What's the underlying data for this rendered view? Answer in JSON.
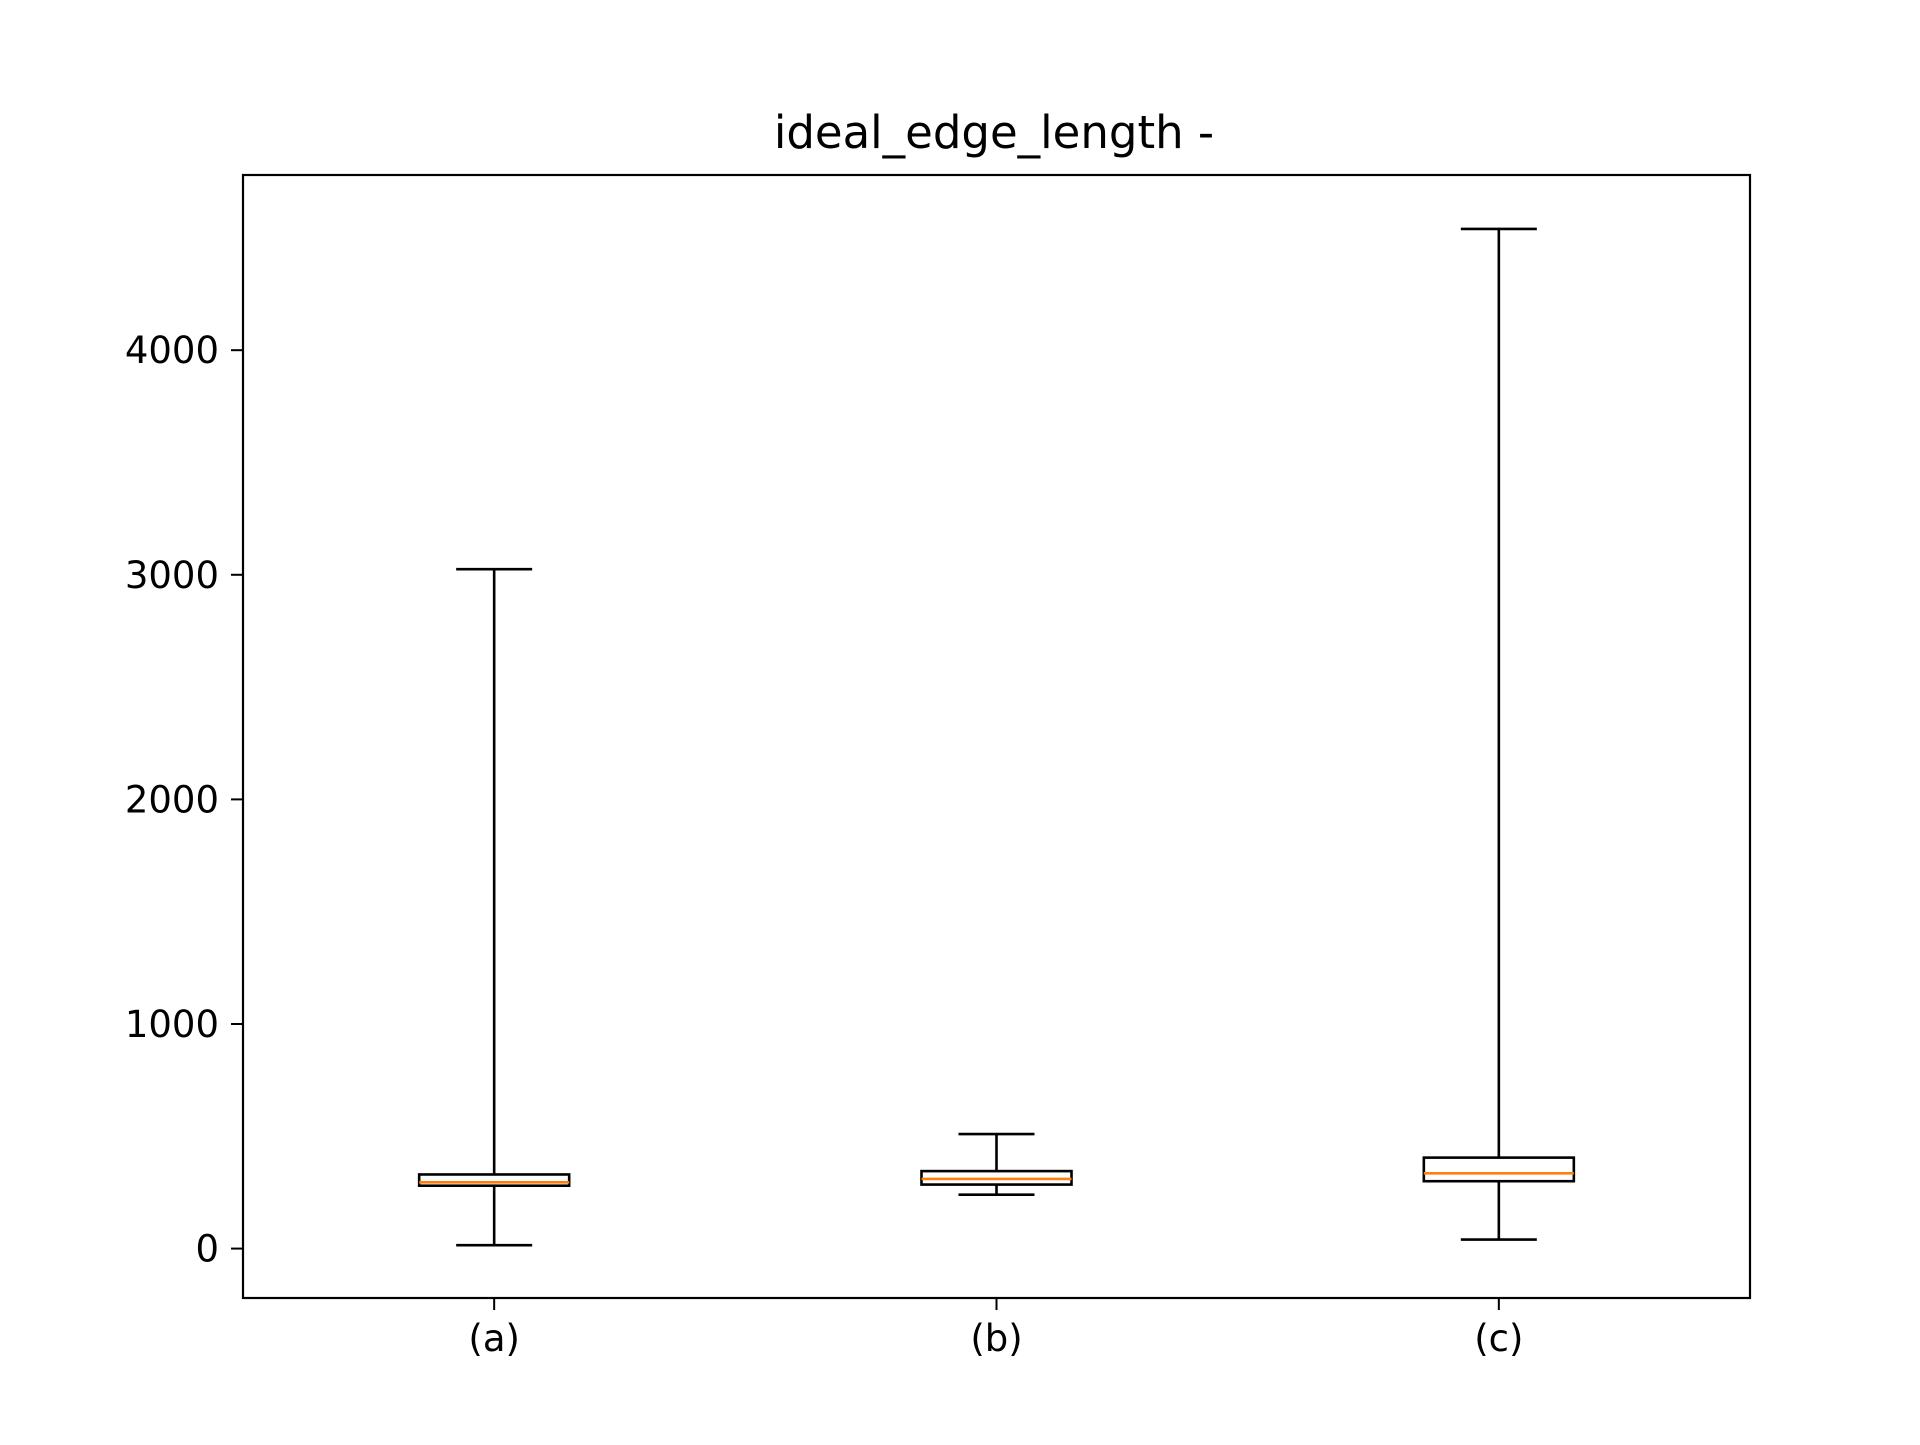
{
  "chart_data": {
    "type": "box",
    "title": "ideal_edge_length -",
    "xlabel": "",
    "ylabel": "",
    "categories": [
      "(a)",
      "(b)",
      "(c)"
    ],
    "boxes": [
      {
        "label": "(a)",
        "whisker_low": 15,
        "q1": 280,
        "median": 295,
        "q3": 330,
        "whisker_high": 3025
      },
      {
        "label": "(b)",
        "whisker_low": 240,
        "q1": 285,
        "median": 310,
        "q3": 345,
        "whisker_high": 510
      },
      {
        "label": "(c)",
        "whisker_low": 40,
        "q1": 300,
        "median": 335,
        "q3": 405,
        "whisker_high": 4540
      }
    ],
    "yticks": [
      0,
      1000,
      2000,
      3000,
      4000
    ],
    "ytick_labels": [
      "0",
      "1000",
      "2000",
      "3000",
      "4000"
    ],
    "ylim": [
      -220,
      4780
    ],
    "grid": false,
    "colors": {
      "box": "#000000",
      "median": "#ff7f0e",
      "axes": "#000000"
    }
  }
}
